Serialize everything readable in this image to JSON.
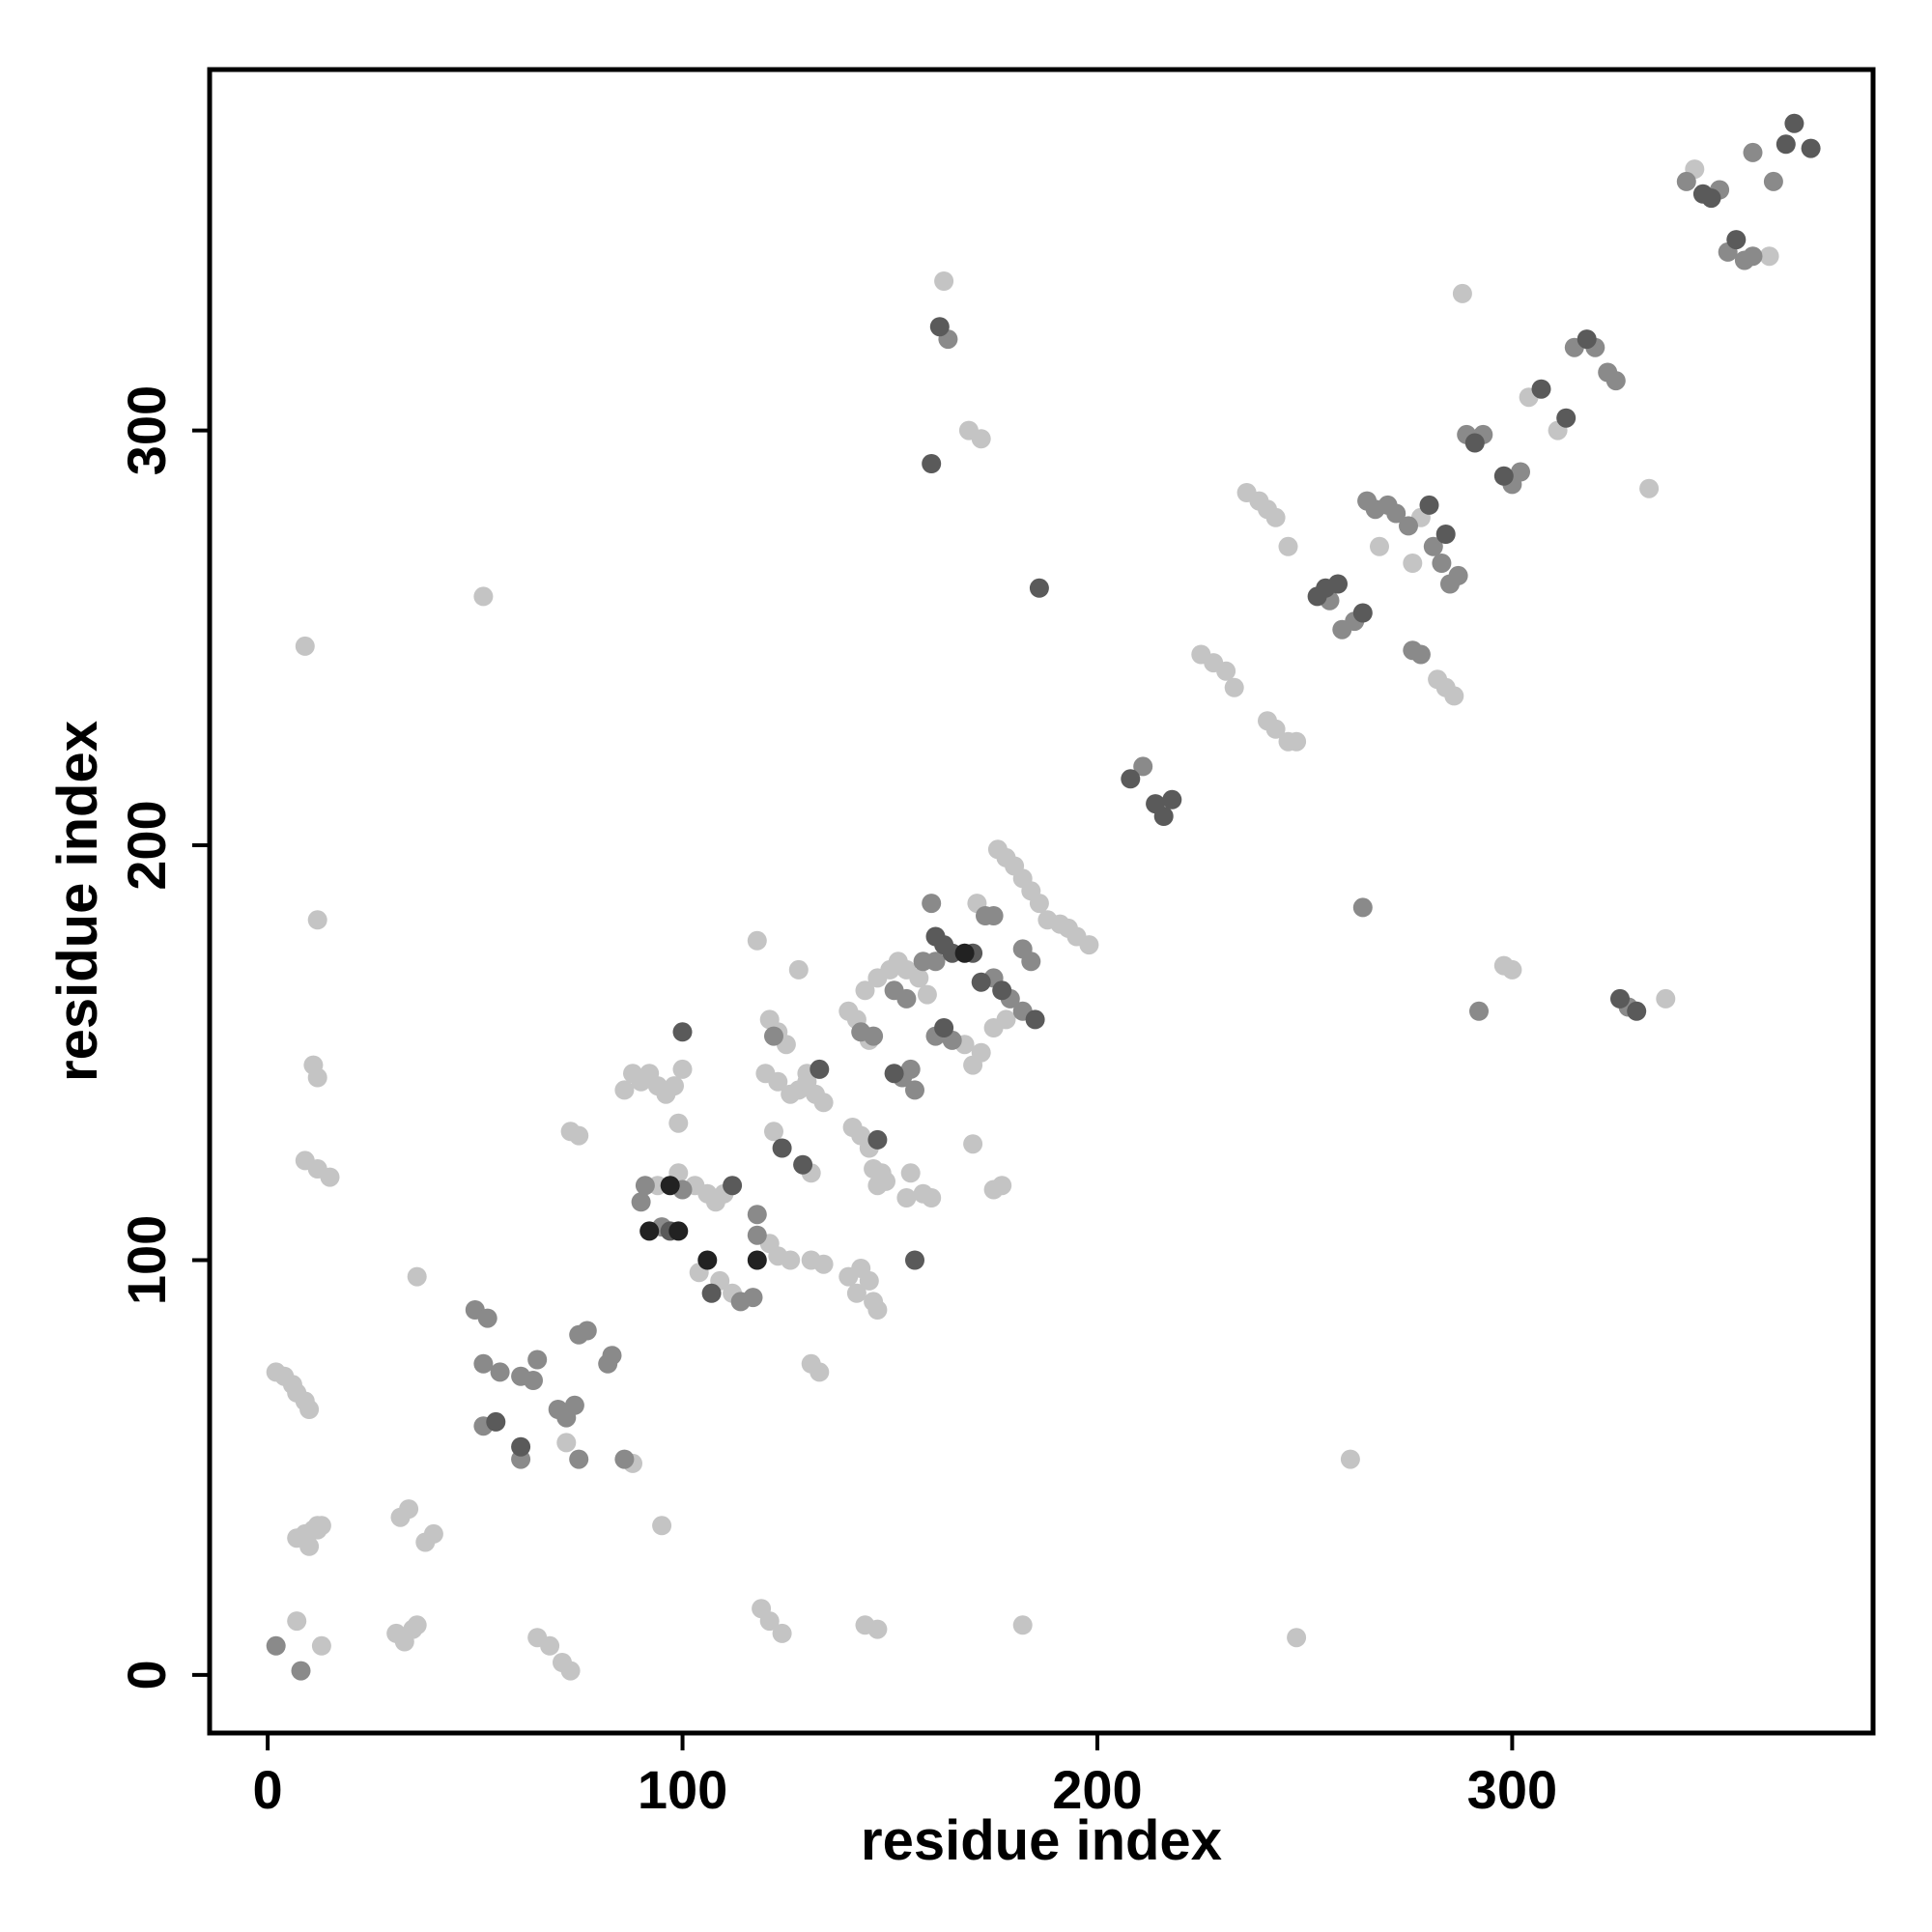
{
  "chart_data": {
    "type": "scatter",
    "xlabel": "residue index",
    "ylabel": "residue index",
    "xlim": [
      -14,
      387
    ],
    "ylim": [
      -14,
      387
    ],
    "xticks": [
      0,
      100,
      200,
      300
    ],
    "yticks": [
      0,
      100,
      200,
      300
    ],
    "grid": false,
    "legend": "none",
    "colors": {
      "background": "#ffffff",
      "frame": "#000000",
      "light": "#c4c4c4",
      "mid": "#8a8a8a",
      "dark": "#5a5a5a",
      "black": "#222222"
    },
    "points": [
      [
        2,
        73,
        "light"
      ],
      [
        4,
        72,
        "light"
      ],
      [
        6,
        70,
        "light"
      ],
      [
        7,
        68,
        "light"
      ],
      [
        9,
        66,
        "light"
      ],
      [
        10,
        64,
        "light"
      ],
      [
        7,
        33,
        "light"
      ],
      [
        9,
        34,
        "light"
      ],
      [
        11,
        35,
        "light"
      ],
      [
        12,
        36,
        "light"
      ],
      [
        10,
        31,
        "light"
      ],
      [
        12,
        35,
        "light"
      ],
      [
        13,
        36,
        "light"
      ],
      [
        7,
        13,
        "light"
      ],
      [
        13,
        7,
        "light"
      ],
      [
        9,
        248,
        "light"
      ],
      [
        12,
        182,
        "light"
      ],
      [
        11,
        147,
        "light"
      ],
      [
        12,
        144,
        "light"
      ],
      [
        9,
        124,
        "light"
      ],
      [
        12,
        122,
        "light"
      ],
      [
        15,
        120,
        "light"
      ],
      [
        2,
        7,
        "mid"
      ],
      [
        8,
        1,
        "mid"
      ],
      [
        31,
        10,
        "light"
      ],
      [
        33,
        8,
        "light"
      ],
      [
        35,
        11,
        "light"
      ],
      [
        36,
        12,
        "light"
      ],
      [
        34,
        40,
        "light"
      ],
      [
        32,
        38,
        "light"
      ],
      [
        38,
        32,
        "light"
      ],
      [
        40,
        34,
        "light"
      ],
      [
        36,
        96,
        "light"
      ],
      [
        52,
        260,
        "light"
      ],
      [
        50,
        88,
        "mid"
      ],
      [
        53,
        86,
        "mid"
      ],
      [
        52,
        75,
        "mid"
      ],
      [
        56,
        73,
        "mid"
      ],
      [
        52,
        60,
        "mid"
      ],
      [
        55,
        61,
        "dark"
      ],
      [
        61,
        72,
        "mid"
      ],
      [
        64,
        71,
        "mid"
      ],
      [
        65,
        76,
        "mid"
      ],
      [
        61,
        55,
        "dark"
      ],
      [
        61,
        52,
        "mid"
      ],
      [
        70,
        64,
        "mid"
      ],
      [
        72,
        62,
        "mid"
      ],
      [
        74,
        65,
        "mid"
      ],
      [
        72,
        56,
        "light"
      ],
      [
        75,
        52,
        "mid"
      ],
      [
        75,
        82,
        "mid"
      ],
      [
        77,
        83,
        "mid"
      ],
      [
        82,
        75,
        "mid"
      ],
      [
        83,
        77,
        "mid"
      ],
      [
        86,
        52,
        "mid"
      ],
      [
        88,
        51,
        "light"
      ],
      [
        65,
        9,
        "light"
      ],
      [
        68,
        7,
        "light"
      ],
      [
        71,
        3,
        "light"
      ],
      [
        73,
        1,
        "light"
      ],
      [
        73,
        131,
        "light"
      ],
      [
        75,
        130,
        "light"
      ],
      [
        86,
        141,
        "light"
      ],
      [
        88,
        145,
        "light"
      ],
      [
        90,
        143,
        "light"
      ],
      [
        92,
        145,
        "light"
      ],
      [
        94,
        142,
        "light"
      ],
      [
        96,
        140,
        "light"
      ],
      [
        98,
        142,
        "light"
      ],
      [
        100,
        146,
        "light"
      ],
      [
        90,
        114,
        "mid"
      ],
      [
        91,
        118,
        "mid"
      ],
      [
        94,
        118,
        "light"
      ],
      [
        92,
        107,
        "black"
      ],
      [
        95,
        108,
        "mid"
      ],
      [
        97,
        107,
        "dark"
      ],
      [
        99,
        107,
        "black"
      ],
      [
        99,
        133,
        "light"
      ],
      [
        100,
        155,
        "dark"
      ],
      [
        99,
        121,
        "light"
      ],
      [
        103,
        118,
        "light"
      ],
      [
        106,
        116,
        "light"
      ],
      [
        108,
        114,
        "light"
      ],
      [
        110,
        116,
        "light"
      ],
      [
        97,
        118,
        "black"
      ],
      [
        100,
        117,
        "mid"
      ],
      [
        104,
        97,
        "light"
      ],
      [
        106,
        100,
        "black"
      ],
      [
        107,
        92,
        "dark"
      ],
      [
        109,
        95,
        "light"
      ],
      [
        112,
        92,
        "light"
      ],
      [
        114,
        90,
        "mid"
      ],
      [
        117,
        91,
        "mid"
      ],
      [
        118,
        100,
        "black"
      ],
      [
        118,
        106,
        "mid"
      ],
      [
        118,
        111,
        "mid"
      ],
      [
        121,
        104,
        "light"
      ],
      [
        123,
        101,
        "light"
      ],
      [
        126,
        100,
        "light"
      ],
      [
        95,
        36,
        "light"
      ],
      [
        112,
        118,
        "dark"
      ],
      [
        119,
        16,
        "light"
      ],
      [
        121,
        13,
        "light"
      ],
      [
        124,
        10,
        "light"
      ],
      [
        118,
        177,
        "light"
      ],
      [
        121,
        158,
        "light"
      ],
      [
        123,
        155,
        "light"
      ],
      [
        125,
        152,
        "light"
      ],
      [
        120,
        145,
        "light"
      ],
      [
        123,
        143,
        "light"
      ],
      [
        126,
        140,
        "light"
      ],
      [
        128,
        141,
        "light"
      ],
      [
        130,
        145,
        "light"
      ],
      [
        133,
        146,
        "dark"
      ],
      [
        122,
        131,
        "light"
      ],
      [
        124,
        127,
        "dark"
      ],
      [
        122,
        154,
        "mid"
      ],
      [
        128,
        170,
        "light"
      ],
      [
        130,
        143,
        "light"
      ],
      [
        132,
        140,
        "light"
      ],
      [
        134,
        138,
        "light"
      ],
      [
        129,
        123,
        "dark"
      ],
      [
        131,
        121,
        "light"
      ],
      [
        131,
        100,
        "light"
      ],
      [
        134,
        99,
        "light"
      ],
      [
        131,
        75,
        "light"
      ],
      [
        133,
        73,
        "light"
      ],
      [
        140,
        160,
        "light"
      ],
      [
        142,
        158,
        "light"
      ],
      [
        140,
        96,
        "light"
      ],
      [
        142,
        92,
        "light"
      ],
      [
        143,
        98,
        "light"
      ],
      [
        145,
        95,
        "light"
      ],
      [
        146,
        90,
        "light"
      ],
      [
        147,
        88,
        "light"
      ],
      [
        141,
        132,
        "light"
      ],
      [
        143,
        130,
        "light"
      ],
      [
        145,
        127,
        "light"
      ],
      [
        146,
        122,
        "light"
      ],
      [
        147,
        118,
        "light"
      ],
      [
        148,
        121,
        "light"
      ],
      [
        149,
        119,
        "light"
      ],
      [
        143,
        155,
        "mid"
      ],
      [
        146,
        154,
        "mid"
      ],
      [
        145,
        153,
        "light"
      ],
      [
        147,
        129,
        "dark"
      ],
      [
        144,
        12,
        "light"
      ],
      [
        147,
        11,
        "light"
      ],
      [
        144,
        165,
        "light"
      ],
      [
        147,
        168,
        "light"
      ],
      [
        150,
        170,
        "light"
      ],
      [
        152,
        172,
        "light"
      ],
      [
        154,
        170,
        "light"
      ],
      [
        151,
        145,
        "dark"
      ],
      [
        153,
        144,
        "mid"
      ],
      [
        155,
        146,
        "mid"
      ],
      [
        156,
        141,
        "mid"
      ],
      [
        154,
        115,
        "light"
      ],
      [
        155,
        121,
        "light"
      ],
      [
        158,
        116,
        "light"
      ],
      [
        160,
        115,
        "light"
      ],
      [
        156,
        100,
        "dark"
      ],
      [
        151,
        165,
        "mid"
      ],
      [
        154,
        163,
        "mid"
      ],
      [
        157,
        168,
        "light"
      ],
      [
        159,
        164,
        "light"
      ],
      [
        158,
        172,
        "mid"
      ],
      [
        161,
        172,
        "mid"
      ],
      [
        160,
        186,
        "mid"
      ],
      [
        161,
        178,
        "dark"
      ],
      [
        163,
        176,
        "dark"
      ],
      [
        165,
        174,
        "dark"
      ],
      [
        168,
        174,
        "black"
      ],
      [
        170,
        174,
        "dark"
      ],
      [
        161,
        154,
        "mid"
      ],
      [
        163,
        156,
        "dark"
      ],
      [
        165,
        153,
        "mid"
      ],
      [
        168,
        152,
        "light"
      ],
      [
        170,
        147,
        "light"
      ],
      [
        172,
        150,
        "light"
      ],
      [
        175,
        156,
        "light"
      ],
      [
        178,
        158,
        "light"
      ],
      [
        162,
        325,
        "dark"
      ],
      [
        164,
        322,
        "mid"
      ],
      [
        163,
        336,
        "light"
      ],
      [
        160,
        292,
        "dark"
      ],
      [
        169,
        300,
        "light"
      ],
      [
        172,
        298,
        "light"
      ],
      [
        170,
        128,
        "light"
      ],
      [
        171,
        186,
        "light"
      ],
      [
        173,
        183,
        "mid"
      ],
      [
        175,
        183,
        "mid"
      ],
      [
        172,
        167,
        "dark"
      ],
      [
        175,
        168,
        "mid"
      ],
      [
        177,
        165,
        "dark"
      ],
      [
        179,
        163,
        "mid"
      ],
      [
        182,
        160,
        "mid"
      ],
      [
        176,
        199,
        "light"
      ],
      [
        178,
        197,
        "light"
      ],
      [
        180,
        195,
        "light"
      ],
      [
        182,
        192,
        "light"
      ],
      [
        184,
        189,
        "light"
      ],
      [
        186,
        186,
        "light"
      ],
      [
        182,
        175,
        "mid"
      ],
      [
        184,
        172,
        "mid"
      ],
      [
        185,
        158,
        "dark"
      ],
      [
        186,
        262,
        "dark"
      ],
      [
        182,
        12,
        "light"
      ],
      [
        175,
        117,
        "light"
      ],
      [
        177,
        118,
        "light"
      ],
      [
        188,
        182,
        "light"
      ],
      [
        191,
        181,
        "light"
      ],
      [
        193,
        180,
        "light"
      ],
      [
        195,
        178,
        "light"
      ],
      [
        198,
        176,
        "light"
      ],
      [
        208,
        216,
        "dark"
      ],
      [
        211,
        219,
        "mid"
      ],
      [
        214,
        210,
        "dark"
      ],
      [
        216,
        207,
        "dark"
      ],
      [
        218,
        211,
        "dark"
      ],
      [
        225,
        246,
        "light"
      ],
      [
        228,
        244,
        "light"
      ],
      [
        231,
        242,
        "light"
      ],
      [
        233,
        238,
        "light"
      ],
      [
        241,
        230,
        "light"
      ],
      [
        243,
        228,
        "light"
      ],
      [
        246,
        225,
        "light"
      ],
      [
        248,
        225,
        "light"
      ],
      [
        236,
        285,
        "light"
      ],
      [
        239,
        283,
        "light"
      ],
      [
        241,
        281,
        "light"
      ],
      [
        243,
        279,
        "light"
      ],
      [
        246,
        272,
        "light"
      ],
      [
        248,
        9,
        "light"
      ],
      [
        253,
        260,
        "dark"
      ],
      [
        255,
        262,
        "dark"
      ],
      [
        258,
        263,
        "dark"
      ],
      [
        256,
        259,
        "mid"
      ],
      [
        259,
        252,
        "mid"
      ],
      [
        262,
        254,
        "mid"
      ],
      [
        264,
        256,
        "dark"
      ],
      [
        261,
        52,
        "light"
      ],
      [
        264,
        185,
        "mid"
      ],
      [
        265,
        283,
        "mid"
      ],
      [
        267,
        281,
        "mid"
      ],
      [
        268,
        272,
        "light"
      ],
      [
        270,
        282,
        "mid"
      ],
      [
        272,
        280,
        "mid"
      ],
      [
        275,
        277,
        "mid"
      ],
      [
        276,
        268,
        "light"
      ],
      [
        278,
        279,
        "light"
      ],
      [
        280,
        282,
        "dark"
      ],
      [
        281,
        272,
        "mid"
      ],
      [
        276,
        247,
        "mid"
      ],
      [
        278,
        246,
        "mid"
      ],
      [
        282,
        240,
        "light"
      ],
      [
        284,
        238,
        "light"
      ],
      [
        286,
        236,
        "light"
      ],
      [
        284,
        275,
        "dark"
      ],
      [
        283,
        268,
        "mid"
      ],
      [
        285,
        263,
        "mid"
      ],
      [
        287,
        265,
        "mid"
      ],
      [
        288,
        333,
        "light"
      ],
      [
        289,
        299,
        "mid"
      ],
      [
        291,
        297,
        "dark"
      ],
      [
        293,
        299,
        "mid"
      ],
      [
        292,
        160,
        "mid"
      ],
      [
        298,
        171,
        "light"
      ],
      [
        300,
        170,
        "light"
      ],
      [
        298,
        289,
        "dark"
      ],
      [
        300,
        287,
        "mid"
      ],
      [
        302,
        290,
        "mid"
      ],
      [
        304,
        308,
        "light"
      ],
      [
        307,
        310,
        "dark"
      ],
      [
        311,
        300,
        "light"
      ],
      [
        313,
        303,
        "dark"
      ],
      [
        315,
        320,
        "mid"
      ],
      [
        318,
        322,
        "dark"
      ],
      [
        320,
        320,
        "mid"
      ],
      [
        323,
        314,
        "mid"
      ],
      [
        325,
        312,
        "mid"
      ],
      [
        326,
        163,
        "dark"
      ],
      [
        328,
        161,
        "mid"
      ],
      [
        330,
        160,
        "dark"
      ],
      [
        333,
        286,
        "light"
      ],
      [
        337,
        163,
        "light"
      ],
      [
        342,
        360,
        "mid"
      ],
      [
        344,
        363,
        "light"
      ],
      [
        346,
        357,
        "dark"
      ],
      [
        348,
        356,
        "dark"
      ],
      [
        350,
        358,
        "mid"
      ],
      [
        352,
        343,
        "mid"
      ],
      [
        354,
        346,
        "dark"
      ],
      [
        356,
        341,
        "mid"
      ],
      [
        358,
        342,
        "mid"
      ],
      [
        358,
        367,
        "mid"
      ],
      [
        362,
        342,
        "light"
      ],
      [
        363,
        360,
        "mid"
      ],
      [
        366,
        369,
        "dark"
      ],
      [
        368,
        374,
        "dark"
      ],
      [
        372,
        368,
        "dark"
      ]
    ]
  }
}
